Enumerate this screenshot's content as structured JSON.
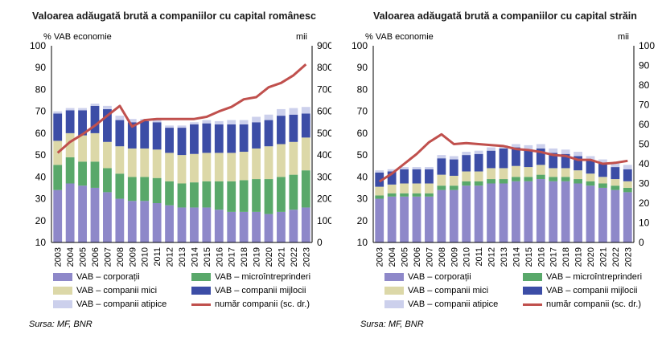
{
  "chart_data": [
    {
      "type": "bar",
      "title": "Valoarea adăugată brută a companiilor cu capital românesc",
      "ylabel_left": "% VAB economie",
      "ylabel_right": "mii",
      "ylim": [
        10,
        100
      ],
      "ylim_right": [
        0,
        900
      ],
      "yticks": [
        10,
        20,
        30,
        40,
        50,
        60,
        70,
        80,
        90,
        100
      ],
      "yticks_right": [
        0,
        100,
        200,
        300,
        400,
        500,
        600,
        700,
        800,
        900
      ],
      "categories": [
        "2003",
        "2004",
        "2005",
        "2006",
        "2007",
        "2008",
        "2009",
        "2010",
        "2011",
        "2012",
        "2013",
        "2014",
        "2015",
        "2016",
        "2017",
        "2018",
        "2019",
        "2020",
        "2021",
        "2022",
        "2023"
      ],
      "stacked": true,
      "series": [
        {
          "name": "VAB – corporații",
          "color": "#8e88c9",
          "values": [
            24,
            27,
            26,
            25,
            23,
            20,
            19,
            19,
            18,
            17,
            16,
            16,
            16,
            15,
            14,
            14,
            14,
            13,
            14,
            15,
            16
          ]
        },
        {
          "name": "VAB – microîntreprinderi",
          "color": "#59a86a",
          "values": [
            11.5,
            12,
            11,
            12,
            11,
            11.5,
            11,
            11,
            11.5,
            11,
            11,
            11.5,
            12,
            13,
            14,
            14.5,
            15,
            16,
            16,
            16,
            17
          ]
        },
        {
          "name": "VAB – companii mici",
          "color": "#dcd8a8",
          "values": [
            11,
            11,
            12,
            13,
            12,
            12.5,
            13,
            13,
            13,
            13,
            13,
            13,
            13,
            13,
            13,
            13,
            14,
            15,
            15,
            15,
            15
          ]
        },
        {
          "name": "VAB – companii mijlocii",
          "color": "#3c4da6",
          "values": [
            12.5,
            10.5,
            11.5,
            12.5,
            15,
            12,
            12,
            12.5,
            12.5,
            11.5,
            12.5,
            13.5,
            13.5,
            13,
            13,
            12.5,
            12,
            12,
            13,
            12.5,
            11
          ]
        },
        {
          "name": "VAB – companii atipice",
          "color": "#ccd0ec",
          "values": [
            1,
            1,
            1,
            1,
            1.5,
            2,
            1.5,
            1,
            1,
            1,
            1,
            1,
            1.5,
            1.5,
            2,
            2,
            2.5,
            2.5,
            3,
            3,
            3
          ]
        }
      ],
      "line": {
        "name": "număr companii (sc. dr.)",
        "color": "#c0504d",
        "axis": "right",
        "values": [
          410,
          460,
          495,
          535,
          580,
          625,
          530,
          560,
          565,
          565,
          565,
          565,
          575,
          600,
          620,
          655,
          665,
          710,
          730,
          765,
          815
        ]
      },
      "legend": [
        "VAB – corporații",
        "VAB – microîntreprinderi",
        "VAB – companii mici",
        "VAB – companii mijlocii",
        "VAB – companii atipice",
        "număr companii (sc. dr.)"
      ],
      "legend_position": "bottom",
      "source": "Sursa: MF, BNR"
    },
    {
      "type": "bar",
      "title": "Valoarea adăugată brută a companiilor cu capital străin",
      "ylabel_left": "% VAB economie",
      "ylabel_right": "mii",
      "ylim": [
        10,
        100
      ],
      "ylim_right": [
        0,
        100
      ],
      "yticks": [
        10,
        20,
        30,
        40,
        50,
        60,
        70,
        80,
        90,
        100
      ],
      "yticks_right": [
        0,
        10,
        20,
        30,
        40,
        50,
        60,
        70,
        80,
        90,
        100
      ],
      "categories": [
        "2003",
        "2004",
        "2005",
        "2006",
        "2007",
        "2008",
        "2009",
        "2010",
        "2011",
        "2012",
        "2013",
        "2014",
        "2015",
        "2016",
        "2017",
        "2018",
        "2019",
        "2020",
        "2021",
        "2022",
        "2023"
      ],
      "stacked": true,
      "series": [
        {
          "name": "VAB – corporații",
          "color": "#8e88c9",
          "values": [
            20,
            21,
            21,
            21,
            21,
            24,
            24,
            26,
            26,
            27,
            27,
            28,
            28,
            29,
            28,
            28,
            27,
            26,
            25,
            24,
            23
          ]
        },
        {
          "name": "VAB – microîntreprinderi",
          "color": "#59a86a",
          "values": [
            1.5,
            1.5,
            1.5,
            1.5,
            1.5,
            2,
            2,
            2,
            2,
            2,
            2,
            2,
            2,
            2,
            2,
            2,
            2,
            2,
            2,
            2,
            2
          ]
        },
        {
          "name": "VAB – companii mici",
          "color": "#dcd8a8",
          "values": [
            4,
            4,
            4.5,
            4.5,
            4.5,
            5,
            4.5,
            4.5,
            4.5,
            5,
            5,
            5,
            4.5,
            4.5,
            4,
            4,
            4,
            3.5,
            3,
            3,
            3
          ]
        },
        {
          "name": "VAB – companii mijlocii",
          "color": "#3c4da6",
          "values": [
            6.5,
            6,
            6.5,
            6.5,
            6.5,
            7.5,
            7.5,
            7.5,
            8,
            8,
            9,
            8.5,
            8,
            7.5,
            7,
            6.5,
            6.5,
            6,
            6,
            5.5,
            5.5
          ]
        },
        {
          "name": "VAB – companii atipice",
          "color": "#ccd0ec",
          "values": [
            1,
            1,
            1,
            1,
            1,
            1.5,
            1.5,
            1.5,
            1.5,
            1.5,
            1.5,
            1.5,
            2,
            2,
            2,
            2,
            2,
            2,
            2,
            2,
            2
          ]
        }
      ],
      "line": {
        "name": "număr companii (sc. dr.)",
        "color": "#c0504d",
        "axis": "right",
        "values": [
          31,
          35,
          40,
          45,
          51,
          55,
          50,
          50.5,
          50,
          49.5,
          49,
          47.5,
          47,
          46,
          44.5,
          44,
          42,
          42,
          40,
          40.5,
          41.5
        ]
      },
      "legend": [
        "VAB – corporații",
        "VAB – microîntreprinderi",
        "VAB – companii mici",
        "VAB – companii mijlocii",
        "VAB – companii atipice",
        "număr companii (sc. dr.)"
      ],
      "legend_position": "bottom",
      "source": "Sursa: MF, BNR"
    }
  ]
}
